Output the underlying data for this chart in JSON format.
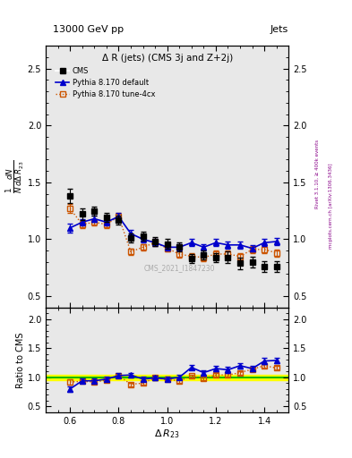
{
  "title_top": "13000 GeV pp",
  "title_right": "Jets",
  "plot_title": "Δ R (jets) (CMS 3j and Z+2j)",
  "ylabel_main": "\\frac{1}{N}\\frac{dN}{d\\Delta R_{23}}",
  "ylabel_ratio": "Ratio to CMS",
  "right_label": "Rivet 3.1.10, ≥ 400k events",
  "right_label2": "mcplots.cern.ch [arXiv:1306.3436]",
  "watermark": "CMS_2021_I1847230",
  "cms_x": [
    0.6,
    0.65,
    0.7,
    0.75,
    0.8,
    0.85,
    0.9,
    0.95,
    1.0,
    1.05,
    1.1,
    1.15,
    1.2,
    1.25,
    1.3,
    1.35,
    1.4,
    1.45
  ],
  "cms_y": [
    1.38,
    1.22,
    1.25,
    1.19,
    1.17,
    1.01,
    1.03,
    0.98,
    0.96,
    0.93,
    0.83,
    0.86,
    0.84,
    0.84,
    0.79,
    0.8,
    0.76,
    0.76
  ],
  "cms_yerr": [
    0.06,
    0.05,
    0.04,
    0.04,
    0.04,
    0.04,
    0.04,
    0.04,
    0.04,
    0.04,
    0.04,
    0.04,
    0.04,
    0.05,
    0.05,
    0.05,
    0.05,
    0.05
  ],
  "py_default_x": [
    0.6,
    0.65,
    0.7,
    0.75,
    0.8,
    0.85,
    0.9,
    0.95,
    1.0,
    1.05,
    1.1,
    1.15,
    1.2,
    1.25,
    1.3,
    1.35,
    1.4,
    1.45
  ],
  "py_default_y": [
    1.1,
    1.15,
    1.18,
    1.15,
    1.2,
    1.05,
    1.0,
    0.97,
    0.93,
    0.93,
    0.97,
    0.93,
    0.97,
    0.95,
    0.95,
    0.92,
    0.97,
    0.98
  ],
  "py_default_yerr": [
    0.04,
    0.03,
    0.03,
    0.03,
    0.03,
    0.03,
    0.03,
    0.03,
    0.03,
    0.03,
    0.03,
    0.03,
    0.03,
    0.03,
    0.03,
    0.03,
    0.03,
    0.03
  ],
  "py_tune_x": [
    0.6,
    0.65,
    0.7,
    0.75,
    0.8,
    0.85,
    0.9,
    0.95,
    1.0,
    1.05,
    1.1,
    1.15,
    1.2,
    1.25,
    1.3,
    1.35,
    1.4,
    1.45
  ],
  "py_tune_y": [
    1.27,
    1.13,
    1.15,
    1.13,
    1.2,
    0.89,
    0.93,
    0.97,
    0.92,
    0.87,
    0.85,
    0.84,
    0.87,
    0.87,
    0.85,
    0.91,
    0.91,
    0.88
  ],
  "py_tune_yerr": [
    0.04,
    0.03,
    0.03,
    0.03,
    0.03,
    0.03,
    0.03,
    0.03,
    0.03,
    0.03,
    0.03,
    0.03,
    0.03,
    0.03,
    0.03,
    0.03,
    0.03,
    0.03
  ],
  "ratio_default_y": [
    0.8,
    0.94,
    0.94,
    0.97,
    1.03,
    1.04,
    0.97,
    0.99,
    0.97,
    1.0,
    1.17,
    1.08,
    1.15,
    1.13,
    1.2,
    1.15,
    1.28,
    1.29
  ],
  "ratio_default_yerr": [
    0.05,
    0.04,
    0.04,
    0.04,
    0.04,
    0.04,
    0.04,
    0.04,
    0.04,
    0.04,
    0.04,
    0.04,
    0.04,
    0.05,
    0.05,
    0.05,
    0.05,
    0.05
  ],
  "ratio_tune_y": [
    0.92,
    0.93,
    0.92,
    0.95,
    1.03,
    0.88,
    0.9,
    0.99,
    0.96,
    0.94,
    1.02,
    0.98,
    1.04,
    1.04,
    1.08,
    1.14,
    1.2,
    1.16
  ],
  "ratio_tune_yerr": [
    0.04,
    0.03,
    0.03,
    0.03,
    0.03,
    0.03,
    0.03,
    0.03,
    0.03,
    0.03,
    0.03,
    0.03,
    0.03,
    0.03,
    0.03,
    0.03,
    0.03,
    0.03
  ],
  "xlim": [
    0.5,
    1.5
  ],
  "ylim_main": [
    0.4,
    2.7
  ],
  "ylim_ratio": [
    0.4,
    2.2
  ],
  "yticks_main": [
    0.5,
    1.0,
    1.5,
    2.0,
    2.5
  ],
  "yticks_ratio": [
    0.5,
    1.0,
    1.5,
    2.0
  ],
  "cms_color": "#000000",
  "py_default_color": "#0000cc",
  "py_tune_color": "#cc5500",
  "band_color_yellow": "#ffff00",
  "band_color_green": "#00bb00",
  "bg_color": "#e8e8e8"
}
